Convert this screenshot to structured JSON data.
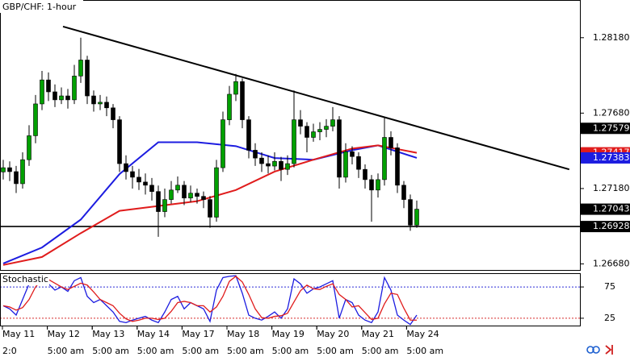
{
  "chart_data": [
    {
      "type": "candlestick",
      "title": "GBP/CHF: 1-hour",
      "xlim": [
        -0.5,
        89.25
      ],
      "ylim": [
        1.2664,
        1.2843
      ],
      "yticks": [
        {
          "value": 1.2818,
          "label": "1.28180"
        },
        {
          "value": 1.2768,
          "label": "1.27680"
        },
        {
          "value": 1.2718,
          "label": "1.27180"
        },
        {
          "value": 1.2668,
          "label": "1.26680"
        }
      ],
      "up_color": "#00a000",
      "down_color": "#000000",
      "ohlc": [
        [
          1.2729,
          1.2737,
          1.2724,
          1.27318
        ],
        [
          1.27318,
          1.2736,
          1.2723,
          1.27292
        ],
        [
          1.27292,
          1.2733,
          1.2715,
          1.27212
        ],
        [
          1.27212,
          1.2742,
          1.2718,
          1.27371
        ],
        [
          1.27371,
          1.276,
          1.2733,
          1.2753
        ],
        [
          1.2753,
          1.278,
          1.2748,
          1.27741
        ],
        [
          1.27741,
          1.2796,
          1.277,
          1.279
        ],
        [
          1.279,
          1.2795,
          1.2776,
          1.27821
        ],
        [
          1.27821,
          1.2787,
          1.2772,
          1.27768
        ],
        [
          1.27768,
          1.2785,
          1.2774,
          1.27794
        ],
        [
          1.27794,
          1.2784,
          1.2771,
          1.27768
        ],
        [
          1.27768,
          1.28,
          1.2774,
          1.27926
        ],
        [
          1.27926,
          1.2818,
          1.2788,
          1.28032
        ],
        [
          1.28032,
          1.2806,
          1.2774,
          1.27794
        ],
        [
          1.27794,
          1.2783,
          1.2769,
          1.27741
        ],
        [
          1.27741,
          1.278,
          1.277,
          1.27752
        ],
        [
          1.27752,
          1.2779,
          1.2766,
          1.27715
        ],
        [
          1.27715,
          1.2774,
          1.2758,
          1.27636
        ],
        [
          1.27636,
          1.2766,
          1.2729,
          1.27345
        ],
        [
          1.27345,
          1.274,
          1.2724,
          1.27292
        ],
        [
          1.27292,
          1.2733,
          1.2718,
          1.27255
        ],
        [
          1.27255,
          1.2731,
          1.2717,
          1.27223
        ],
        [
          1.27223,
          1.2728,
          1.2714,
          1.27202
        ],
        [
          1.27202,
          1.2725,
          1.271,
          1.2716
        ],
        [
          1.2716,
          1.272,
          1.2686,
          1.27027
        ],
        [
          1.27027,
          1.2718,
          1.2699,
          1.27107
        ],
        [
          1.27107,
          1.2723,
          1.2708,
          1.2717
        ],
        [
          1.2717,
          1.2726,
          1.2715,
          1.27202
        ],
        [
          1.27202,
          1.2723,
          1.2707,
          1.27117
        ],
        [
          1.27117,
          1.272,
          1.2709,
          1.27149
        ],
        [
          1.27149,
          1.2718,
          1.2708,
          1.27128
        ],
        [
          1.27128,
          1.2716,
          1.2705,
          1.27107
        ],
        [
          1.27107,
          1.2713,
          1.2692,
          1.2699
        ],
        [
          1.2699,
          1.2737,
          1.2696,
          1.27318
        ],
        [
          1.27318,
          1.2769,
          1.2729,
          1.27636
        ],
        [
          1.27636,
          1.2786,
          1.276,
          1.27805
        ],
        [
          1.27805,
          1.2794,
          1.2776,
          1.27889
        ],
        [
          1.27889,
          1.2791,
          1.2758,
          1.27636
        ],
        [
          1.27636,
          1.2766,
          1.2738,
          1.27434
        ],
        [
          1.27434,
          1.2748,
          1.2733,
          1.27382
        ],
        [
          1.27382,
          1.2742,
          1.2729,
          1.27345
        ],
        [
          1.27345,
          1.274,
          1.2728,
          1.27329
        ],
        [
          1.27329,
          1.2742,
          1.273,
          1.2736
        ],
        [
          1.2736,
          1.2739,
          1.2723,
          1.27307
        ],
        [
          1.27307,
          1.274,
          1.2727,
          1.27345
        ],
        [
          1.27345,
          1.2783,
          1.2732,
          1.27636
        ],
        [
          1.27636,
          1.277,
          1.2754,
          1.27593
        ],
        [
          1.27593,
          1.2762,
          1.2742,
          1.27519
        ],
        [
          1.27519,
          1.2761,
          1.2749,
          1.27556
        ],
        [
          1.27556,
          1.2762,
          1.275,
          1.27572
        ],
        [
          1.27572,
          1.2764,
          1.2752,
          1.27593
        ],
        [
          1.27593,
          1.2772,
          1.2756,
          1.27636
        ],
        [
          1.27636,
          1.2766,
          1.2718,
          1.27255
        ],
        [
          1.27255,
          1.2748,
          1.2722,
          1.27424
        ],
        [
          1.27424,
          1.2746,
          1.2734,
          1.27392
        ],
        [
          1.27392,
          1.2742,
          1.2725,
          1.27307
        ],
        [
          1.27307,
          1.2734,
          1.2718,
          1.27239
        ],
        [
          1.27239,
          1.2727,
          1.2696,
          1.2717
        ],
        [
          1.2717,
          1.2728,
          1.2712,
          1.27239
        ],
        [
          1.27239,
          1.2765,
          1.272,
          1.27519
        ],
        [
          1.27519,
          1.2756,
          1.274,
          1.2745
        ],
        [
          1.2745,
          1.2748,
          1.2715,
          1.27202
        ],
        [
          1.27202,
          1.2723,
          1.2705,
          1.27107
        ],
        [
          1.27107,
          1.2714,
          1.269,
          1.26937
        ],
        [
          1.26937,
          1.271,
          1.2692,
          1.27043
        ]
      ],
      "series": [
        {
          "color": "#1c1ce0",
          "x": [
            0,
            6,
            12,
            18,
            24,
            30,
            36,
            42,
            48,
            54,
            58,
            64
          ],
          "values": [
            1.26683,
            1.26789,
            1.26974,
            1.27276,
            1.27487,
            1.27487,
            1.27461,
            1.27382,
            1.27371,
            1.27434,
            1.27466,
            1.27383
          ]
        },
        {
          "color": "#e01c1c",
          "x": [
            0,
            6,
            12,
            18,
            24,
            30,
            36,
            42,
            48,
            54,
            58,
            64
          ],
          "values": [
            1.26673,
            1.26726,
            1.26884,
            1.27032,
            1.27064,
            1.27096,
            1.2717,
            1.27292,
            1.27371,
            1.27445,
            1.27466,
            1.27417
          ]
        }
      ],
      "trendlines": [
        {
          "x": [
            9.25,
            87.6
          ],
          "y": [
            1.28254,
            1.27307
          ]
        }
      ],
      "hlines": [
        1.26928
      ],
      "price_markers": [
        {
          "value": 1.27579,
          "color": "#000000"
        },
        {
          "value": 1.27417,
          "color": "#e01c1c"
        },
        {
          "value": 1.27383,
          "color": "#1c1ce0"
        },
        {
          "value": 1.27043,
          "color": "#000000"
        },
        {
          "value": 1.26928,
          "color": "#000000"
        }
      ],
      "x_dates": [
        "May 11",
        "May 12",
        "May 13",
        "May 14",
        "May 17",
        "May 18",
        "May 19",
        "May 20",
        "May 21",
        "May 24"
      ],
      "x_times": [
        "2:0",
        "5:00 am",
        "5:00 am",
        "5:00 am",
        "5:00 am",
        "5:00 am",
        "5:00 am",
        "5:00 am",
        "5:00 am",
        "5:00 am"
      ]
    },
    {
      "type": "line",
      "title": "Stochastic",
      "xlim": [
        -0.5,
        89.25
      ],
      "ylim": [
        12,
        97
      ],
      "yticks": [
        75,
        25
      ],
      "level_colors": [
        "#2b2bd8",
        "#d82b2b"
      ],
      "series": [
        {
          "color": "#1c1ce0",
          "values": [
            45,
            40,
            30,
            55,
            80,
            90,
            92,
            80,
            70,
            75,
            68,
            85,
            90,
            60,
            50,
            55,
            45,
            35,
            20,
            18,
            22,
            25,
            28,
            22,
            18,
            35,
            55,
            60,
            40,
            50,
            45,
            40,
            20,
            70,
            90,
            92,
            93,
            65,
            30,
            25,
            22,
            28,
            35,
            25,
            40,
            88,
            80,
            65,
            72,
            75,
            80,
            85,
            25,
            55,
            50,
            30,
            22,
            18,
            35,
            90,
            70,
            30,
            22,
            15,
            30
          ]
        },
        {
          "color": "#e01c1c",
          "values": [
            45,
            43,
            38,
            42,
            55,
            75,
            87,
            87,
            81,
            75,
            71,
            76,
            81,
            78,
            67,
            55,
            50,
            45,
            33,
            24,
            20,
            22,
            25,
            25,
            23,
            25,
            36,
            50,
            52,
            50,
            45,
            45,
            35,
            43,
            60,
            84,
            92,
            83,
            63,
            40,
            26,
            25,
            28,
            29,
            33,
            51,
            69,
            78,
            72,
            71,
            76,
            80,
            63,
            55,
            43,
            45,
            34,
            23,
            25,
            48,
            65,
            63,
            41,
            22,
            22
          ]
        }
      ]
    }
  ]
}
